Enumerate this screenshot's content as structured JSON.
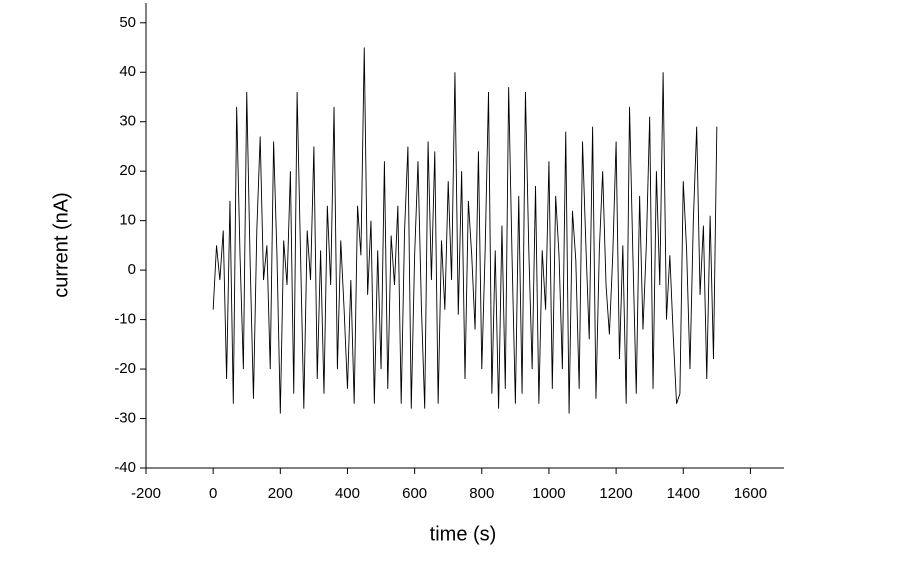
{
  "chart_data": {
    "type": "line",
    "x_label": "time (s)",
    "y_label": "current (nA)",
    "x": [
      0,
      10,
      20,
      30,
      40,
      50,
      60,
      70,
      80,
      90,
      100,
      110,
      120,
      130,
      140,
      150,
      160,
      170,
      180,
      190,
      200,
      210,
      220,
      230,
      240,
      250,
      260,
      270,
      280,
      290,
      300,
      310,
      320,
      330,
      340,
      350,
      360,
      370,
      380,
      390,
      400,
      410,
      420,
      430,
      440,
      450,
      460,
      470,
      480,
      490,
      500,
      510,
      520,
      530,
      540,
      550,
      560,
      570,
      580,
      590,
      600,
      610,
      620,
      630,
      640,
      650,
      660,
      670,
      680,
      690,
      700,
      710,
      720,
      730,
      740,
      750,
      760,
      770,
      780,
      790,
      800,
      810,
      820,
      830,
      840,
      850,
      860,
      870,
      880,
      890,
      900,
      910,
      920,
      930,
      940,
      950,
      960,
      970,
      980,
      990,
      1000,
      1010,
      1020,
      1030,
      1040,
      1050,
      1060,
      1070,
      1080,
      1090,
      1100,
      1110,
      1120,
      1130,
      1140,
      1150,
      1160,
      1170,
      1180,
      1190,
      1200,
      1210,
      1220,
      1230,
      1240,
      1250,
      1260,
      1270,
      1280,
      1290,
      1300,
      1310,
      1320,
      1330,
      1340,
      1350,
      1360,
      1370,
      1380,
      1390,
      1400,
      1410,
      1420,
      1430,
      1440,
      1450,
      1460,
      1470,
      1480,
      1490,
      1500
    ],
    "series": [
      {
        "name": "current",
        "color": "#000000",
        "values": [
          -8,
          5,
          -2,
          8,
          -22,
          14,
          -27,
          33,
          3,
          -20,
          36,
          2,
          -26,
          8,
          27,
          -2,
          5,
          -20,
          26,
          3,
          -29,
          6,
          -3,
          20,
          -25,
          36,
          4,
          -28,
          8,
          -2,
          25,
          -22,
          4,
          -25,
          13,
          -3,
          33,
          -20,
          6,
          -8,
          -24,
          -2,
          -27,
          13,
          3,
          45,
          -5,
          10,
          -27,
          4,
          -20,
          22,
          -24,
          7,
          -3,
          13,
          -27,
          8,
          25,
          -28,
          3,
          22,
          -7,
          -28,
          26,
          -2,
          24,
          -27,
          6,
          -8,
          18,
          -2,
          40,
          -9,
          20,
          -22,
          14,
          3,
          -12,
          24,
          -20,
          4,
          36,
          -25,
          4,
          -28,
          9,
          -24,
          37,
          3,
          -27,
          15,
          -25,
          36,
          4,
          -20,
          17,
          -27,
          4,
          -8,
          22,
          -24,
          15,
          3,
          -20,
          28,
          -29,
          12,
          2,
          -24,
          26,
          5,
          -14,
          29,
          -26,
          4,
          20,
          -3,
          -13,
          3,
          26,
          -18,
          5,
          -27,
          33,
          3,
          -25,
          15,
          -12,
          5,
          31,
          -24,
          20,
          -3,
          40,
          -10,
          3,
          -13,
          -27,
          -25,
          18,
          4,
          -20,
          10,
          29,
          -5,
          9,
          -22,
          11,
          -18,
          29
        ]
      }
    ],
    "xlim": [
      -200,
      1700
    ],
    "ylim": [
      -40,
      54
    ],
    "xticks": [
      -200,
      0,
      200,
      400,
      600,
      800,
      1000,
      1200,
      1400,
      1600
    ],
    "yticks": [
      -40,
      -30,
      -20,
      -10,
      0,
      10,
      20,
      30,
      40,
      50
    ]
  }
}
